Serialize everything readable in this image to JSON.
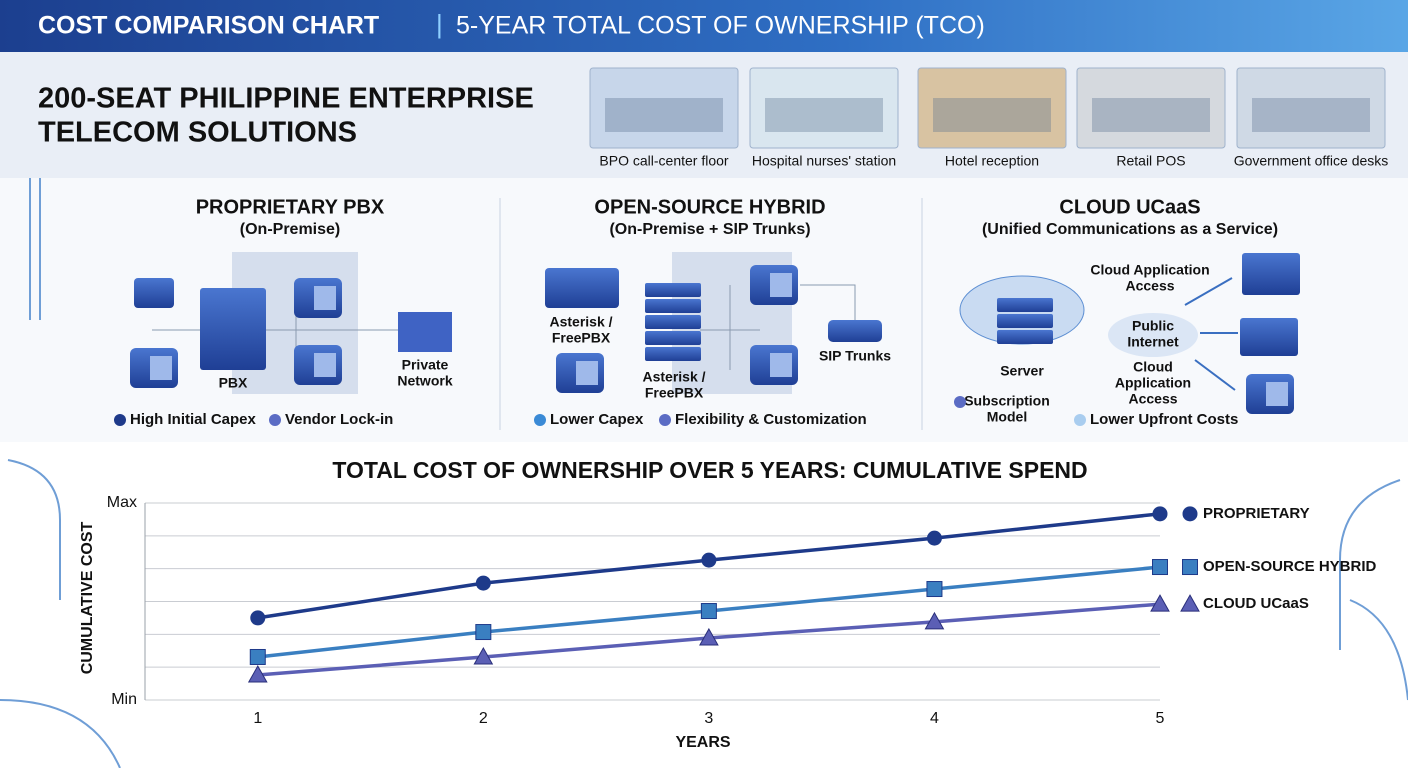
{
  "header": {
    "title": "COST COMPARISON CHART",
    "subtitle": "5-YEAR TOTAL COST OF OWNERSHIP (TCO)"
  },
  "heading": [
    "200-SEAT PHILIPPINE ENTERPRISE",
    "TELECOM SOLUTIONS"
  ],
  "scenes": [
    "BPO call-center floor",
    "Hospital nurses' station",
    "Hotel reception",
    "Retail POS",
    "Government office desks"
  ],
  "panels": [
    {
      "title": "PROPRIETARY PBX",
      "subtitle": "(On-Premise)",
      "labels": [
        [
          "PBX"
        ],
        [
          "Private",
          "Network"
        ]
      ],
      "bullets": [
        "High Initial Capex",
        "Vendor Lock-in"
      ]
    },
    {
      "title": "OPEN-SOURCE HYBRID",
      "subtitle": "(On-Premise + SIP Trunks)",
      "labels": [
        [
          "Asterisk /",
          "FreePBX"
        ],
        [
          "Asterisk /",
          "FreePBX"
        ],
        [
          "SIP Trunks"
        ]
      ],
      "bullets": [
        "Lower Capex",
        "Flexibility & Customization"
      ]
    },
    {
      "title": "CLOUD UCaaS",
      "subtitle": "(Unified Communications as a Service)",
      "labels": [
        [
          "Cloud Application",
          "Access"
        ],
        [
          "Public",
          "Internet"
        ],
        [
          "Cloud",
          "Application",
          "Access"
        ],
        [
          "Server"
        ],
        [
          "Subscription",
          "Model"
        ]
      ],
      "bullets": [
        "Lower Upfront Costs"
      ]
    }
  ],
  "chart_data": {
    "type": "line",
    "title": "TOTAL COST OF OWNERSHIP OVER 5 YEARS: CUMULATIVE SPEND",
    "x_label": "YEARS",
    "y_label": "CUMULATIVE COST",
    "x": [
      1,
      2,
      3,
      4,
      5
    ],
    "xlim": [
      0.5,
      5
    ],
    "xticks": [
      1,
      2,
      3,
      4,
      5
    ],
    "ylim": [
      0,
      6
    ],
    "yticks": [
      {
        "value": 0,
        "label": "Min"
      },
      {
        "value": 1,
        "label": null
      },
      {
        "value": 2,
        "label": null
      },
      {
        "value": 3,
        "label": null
      },
      {
        "value": 4,
        "label": null
      },
      {
        "value": 5,
        "label": null
      },
      {
        "value": 6,
        "label": "Max"
      }
    ],
    "grid": true,
    "legend": "right",
    "series": [
      {
        "name": "PROPRIETARY",
        "color": "#1e3a8a",
        "marker": "circle",
        "values": [
          2.5,
          3.56,
          4.26,
          4.93,
          5.67
        ]
      },
      {
        "name": "OPEN-SOURCE HYBRID",
        "color": "#3a7fc1",
        "marker": "square",
        "values": [
          1.31,
          2.07,
          2.71,
          3.38,
          4.05
        ]
      },
      {
        "name": "CLOUD UCaaS",
        "color": "#5b5fb5",
        "marker": "triangle",
        "values": [
          0.76,
          1.31,
          1.89,
          2.38,
          2.92
        ]
      }
    ]
  }
}
